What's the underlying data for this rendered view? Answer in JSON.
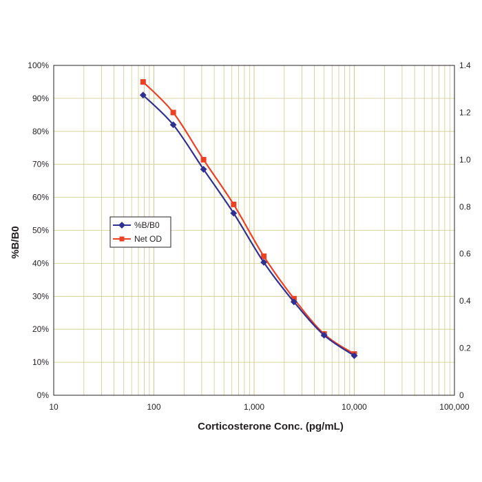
{
  "chart_data": {
    "type": "line",
    "title": "",
    "xlabel": "Corticosterone Conc. (pg/mL)",
    "ylabel": "%B/B0",
    "y2label": "",
    "x_scale": "log",
    "xlim": [
      10,
      100000
    ],
    "ylim": [
      0,
      100
    ],
    "y2lim": [
      0,
      1.4
    ],
    "grid": true,
    "legend_position": "left-middle",
    "x_ticks": [
      "10",
      "100",
      "1,000",
      "10,000",
      "100,000"
    ],
    "y_ticks": [
      "0%",
      "10%",
      "20%",
      "30%",
      "40%",
      "50%",
      "60%",
      "70%",
      "80%",
      "90%",
      "100%"
    ],
    "y2_ticks": [
      "0",
      "0.2",
      "0.4",
      "0.6",
      "0.8",
      "1.0",
      "1.2",
      "1.4"
    ],
    "x": [
      78,
      156,
      313,
      625,
      1250,
      2500,
      5000,
      10000
    ],
    "series": [
      {
        "name": "%B/B0",
        "axis": "left",
        "color": "#2e3192",
        "marker": "diamond",
        "values": [
          91,
          82,
          68.5,
          55.2,
          40.3,
          28.3,
          18.2,
          12
        ]
      },
      {
        "name": "Net OD",
        "axis": "right",
        "color": "#ee4023",
        "marker": "square",
        "values": [
          1.33,
          1.2,
          1.0,
          0.81,
          0.59,
          0.41,
          0.26,
          0.175
        ]
      }
    ]
  }
}
